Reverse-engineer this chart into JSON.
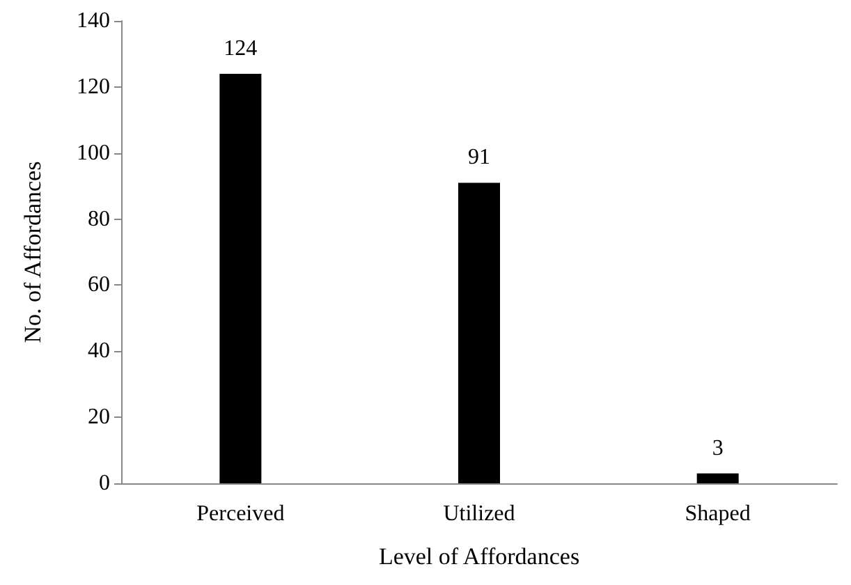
{
  "chart_data": {
    "type": "bar",
    "xlabel": "Level of Affordances",
    "ylabel": "No. of Affordances",
    "categories": [
      "Perceived",
      "Utilized",
      "Shaped"
    ],
    "values": [
      124,
      91,
      3
    ],
    "color": "#000000",
    "ylim": [
      0,
      140
    ],
    "yticks": [
      0,
      20,
      40,
      60,
      80,
      100,
      120,
      140
    ],
    "grid": false,
    "data_labels": true
  }
}
